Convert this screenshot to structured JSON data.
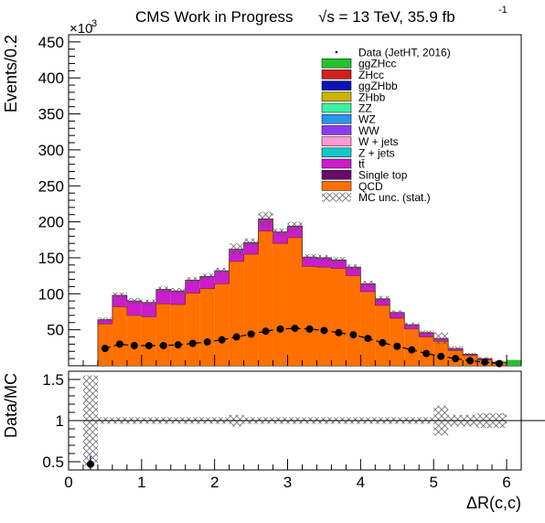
{
  "header": {
    "title": "CMS Work in Progress",
    "energy": "√s = 13 TeV, 35.9 fb",
    "energy_exp": "-1"
  },
  "chart_data": [
    {
      "type": "bar",
      "stacked": true,
      "ylabel": "Events/0.2",
      "yexponent": "×10",
      "yexponent_power": "3",
      "xlim": [
        0,
        6.2
      ],
      "ylim": [
        0,
        460
      ],
      "y_ticks": [
        50,
        100,
        150,
        200,
        250,
        300,
        350,
        400,
        450
      ],
      "x_edges": [
        0.4,
        0.6,
        0.8,
        1.0,
        1.2,
        1.4,
        1.6,
        1.8,
        2.0,
        2.2,
        2.4,
        2.6,
        2.8,
        3.0,
        3.2,
        3.4,
        3.6,
        3.8,
        4.0,
        4.2,
        4.4,
        4.6,
        4.8,
        5.0,
        5.2,
        5.4,
        5.6,
        5.8,
        6.0
      ],
      "legend_position": "top-right",
      "legend": [
        {
          "label": "Data (JetHT, 2016)",
          "kind": "point",
          "color": "#000000"
        },
        {
          "label": "ggZHcc",
          "kind": "fill",
          "color": "#22c32e"
        },
        {
          "label": "ZHcc",
          "kind": "fill",
          "color": "#d31e1e"
        },
        {
          "label": "ggZHbb",
          "kind": "fill",
          "color": "#0a14b4"
        },
        {
          "label": "ZHbb",
          "kind": "fill",
          "color": "#c8b400"
        },
        {
          "label": "ZZ",
          "kind": "fill",
          "color": "#3cf0a0"
        },
        {
          "label": "WZ",
          "kind": "fill",
          "color": "#2896f0"
        },
        {
          "label": "WW",
          "kind": "fill",
          "color": "#8c3cf0"
        },
        {
          "label": "W + jets",
          "kind": "fill",
          "color": "#ff9bd2"
        },
        {
          "label": "Z + jets",
          "kind": "fill",
          "color": "#14c8c8"
        },
        {
          "label": "tt̄",
          "kind": "fill",
          "color": "#cc1ccc"
        },
        {
          "label": "Single top",
          "kind": "fill",
          "color": "#6b0a6b"
        },
        {
          "label": "QCD",
          "kind": "fill",
          "color": "#ff7000"
        },
        {
          "label": "MC unc. (stat.)",
          "kind": "hatch",
          "color": "#555555"
        }
      ],
      "series": [
        {
          "name": "QCD",
          "color": "#ff7000",
          "values": [
            58,
            82,
            70,
            68,
            86,
            85,
            101,
            107,
            114,
            145,
            155,
            187,
            170,
            178,
            138,
            137,
            135,
            125,
            103,
            84,
            66,
            51,
            40,
            34,
            21,
            14,
            8,
            4
          ]
        },
        {
          "name": "tt̄",
          "color": "#cc1ccc",
          "values": [
            6,
            16,
            20,
            20,
            20,
            19,
            18,
            17,
            18,
            17,
            16,
            17,
            16,
            16,
            13,
            13,
            12,
            12,
            11,
            9,
            8,
            6,
            6,
            4,
            3,
            2,
            2,
            1
          ]
        }
      ],
      "mc_total": [
        64,
        98,
        90,
        88,
        106,
        104,
        119,
        124,
        132,
        162,
        171,
        204,
        186,
        194,
        151,
        150,
        147,
        137,
        114,
        93,
        74,
        57,
        46,
        38,
        24,
        16,
        10,
        5
      ],
      "mc_unc": [
        3,
        4,
        4,
        4,
        4,
        4,
        4,
        4,
        4,
        8,
        6,
        10,
        5,
        6,
        4,
        4,
        4,
        4,
        4,
        4,
        3,
        3,
        3,
        8,
        3,
        2,
        2,
        2
      ],
      "data_points": {
        "x": [
          0.5,
          0.7,
          0.9,
          1.1,
          1.3,
          1.5,
          1.7,
          1.9,
          2.1,
          2.3,
          2.5,
          2.7,
          2.9,
          3.1,
          3.3,
          3.5,
          3.7,
          3.9,
          4.1,
          4.3,
          4.5,
          4.7,
          4.9,
          5.1,
          5.3,
          5.5,
          5.7,
          5.9
        ],
        "y": [
          24,
          30,
          28,
          28,
          28,
          29,
          31,
          33,
          36,
          40,
          44,
          48,
          51,
          52,
          51,
          49,
          46,
          43,
          38,
          32,
          27,
          22,
          17,
          13,
          10,
          7,
          5,
          3
        ]
      },
      "ggzhcc_last_bin": {
        "x": [
          6.0,
          6.2
        ],
        "value": 8
      }
    },
    {
      "type": "scatter",
      "xlabel": "ΔR(c,c)",
      "ylabel": "Data/MC",
      "xlim": [
        0,
        6.2
      ],
      "ylim": [
        0.4,
        1.6
      ],
      "x_ticks": [
        0,
        1,
        2,
        3,
        4,
        5,
        6
      ],
      "y_ticks": [
        0.5,
        1,
        1.5
      ],
      "reference_line": 1.0,
      "ratio_band": [
        [
          0.2,
          0.4,
          1.0,
          0.55
        ],
        [
          0.4,
          2.2,
          1.0,
          0.04
        ],
        [
          2.2,
          2.4,
          1.0,
          0.07
        ],
        [
          2.4,
          5.0,
          1.0,
          0.04
        ],
        [
          5.0,
          5.2,
          1.0,
          0.18
        ],
        [
          5.2,
          5.6,
          1.0,
          0.07
        ],
        [
          5.6,
          6.0,
          1.0,
          0.09
        ]
      ],
      "points": {
        "x": [
          0.3
        ],
        "y": [
          0.47
        ],
        "yerr": [
          0.1
        ]
      }
    }
  ]
}
